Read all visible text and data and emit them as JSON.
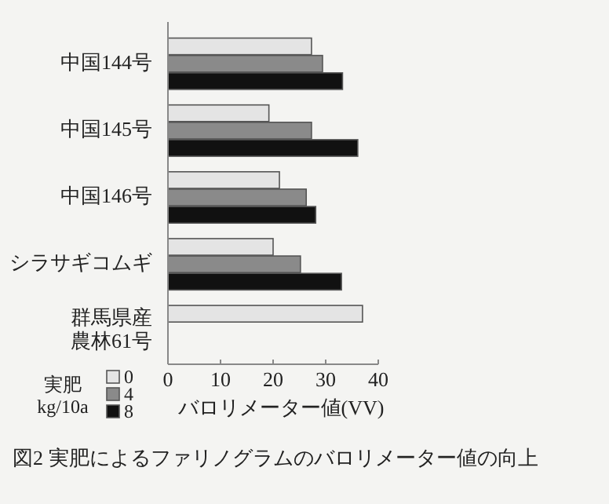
{
  "chart_data": {
    "type": "bar",
    "orientation": "horizontal",
    "title": "図2 実肥によるファリノグラムのバロリメーター値の向上",
    "xlabel": "バロリメーター値(VV)",
    "legend_title": "実肥\nkg/10a",
    "legend": "bottom left",
    "categories": [
      "中国144号",
      "中国145号",
      "中国146号",
      "シラサギコムギ",
      "群馬県産農林61号"
    ],
    "series": [
      {
        "name": "0",
        "color": "#e4e4e4",
        "values": [
          27.3,
          19.2,
          21.2,
          20,
          37
        ]
      },
      {
        "name": "4",
        "color": "#8a8a8a",
        "values": [
          29.4,
          27.3,
          26.3,
          25.2,
          null
        ]
      },
      {
        "name": "8",
        "color": "#111111",
        "values": [
          33.2,
          36.1,
          28.1,
          33,
          null
        ]
      }
    ],
    "xlim": [
      0,
      40
    ],
    "xticks": [
      0,
      10,
      20,
      30,
      40
    ]
  }
}
